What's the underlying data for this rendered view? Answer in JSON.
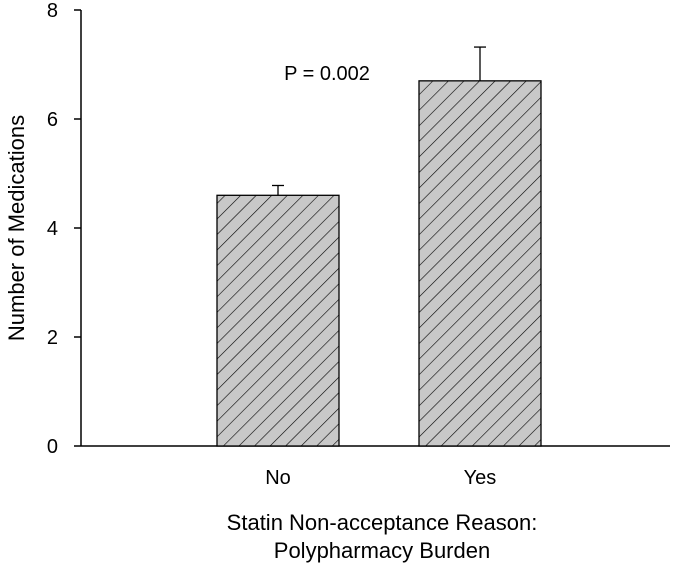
{
  "chart_data": {
    "type": "bar",
    "categories": [
      "No",
      "Yes"
    ],
    "values": [
      4.6,
      6.7
    ],
    "error_bars_upper": [
      0.18,
      0.62
    ],
    "annotation": "P = 0.002",
    "xlabel_line1": "Statin Non-acceptance Reason:",
    "xlabel_line2": "Polypharmacy Burden",
    "ylabel": "Number of Medications",
    "ylim": [
      0,
      8
    ],
    "yticks": [
      "0",
      "2",
      "4",
      "6",
      "8"
    ],
    "grid": false,
    "bar_fill": "#c8c8c8",
    "hatch_color": "#000000"
  }
}
